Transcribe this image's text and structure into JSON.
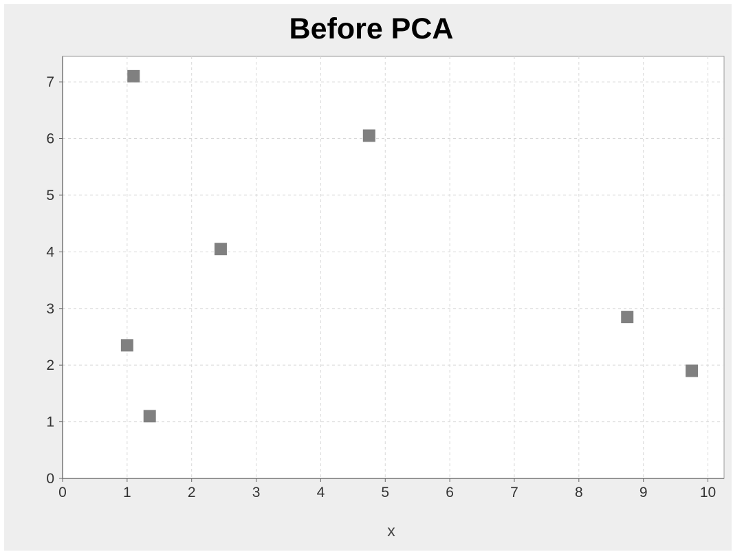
{
  "chart_data": {
    "type": "scatter",
    "title": "Before PCA",
    "xlabel": "x",
    "ylabel": "",
    "xlim": [
      0,
      10.25
    ],
    "ylim": [
      0,
      7.45
    ],
    "x_ticks": [
      "0",
      "1",
      "2",
      "3",
      "4",
      "5",
      "6",
      "7",
      "8",
      "9",
      "10"
    ],
    "y_ticks": [
      "0",
      "1",
      "2",
      "3",
      "4",
      "5",
      "6",
      "7"
    ],
    "grid": true,
    "legend": "none",
    "marker": "square",
    "series": [
      {
        "color": "#808080",
        "points": [
          {
            "x": 1.1,
            "y": 7.1
          },
          {
            "x": 4.75,
            "y": 6.05
          },
          {
            "x": 2.45,
            "y": 4.05
          },
          {
            "x": 1.0,
            "y": 2.35
          },
          {
            "x": 1.35,
            "y": 1.1
          },
          {
            "x": 8.75,
            "y": 2.85
          },
          {
            "x": 9.75,
            "y": 1.9
          }
        ]
      }
    ]
  }
}
